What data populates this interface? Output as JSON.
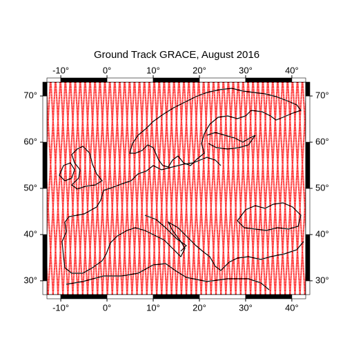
{
  "chart_data": {
    "type": "map",
    "title": "Ground Track GRACE, August 2016",
    "xlim": [
      -13,
      43
    ],
    "ylim": [
      27,
      73
    ],
    "xticks": [
      {
        "value": -10,
        "label": "-10°"
      },
      {
        "value": 0,
        "label": "0°"
      },
      {
        "value": 10,
        "label": "10°"
      },
      {
        "value": 20,
        "label": "20°"
      },
      {
        "value": 30,
        "label": "30°"
      },
      {
        "value": 40,
        "label": "40°"
      }
    ],
    "yticks": [
      {
        "value": 30,
        "label": "30°"
      },
      {
        "value": 40,
        "label": "40°"
      },
      {
        "value": 50,
        "label": "50°"
      },
      {
        "value": 60,
        "label": "60°"
      },
      {
        "value": 70,
        "label": "70°"
      }
    ],
    "track_color": "#ff0000",
    "coast_color": "#000000"
  }
}
